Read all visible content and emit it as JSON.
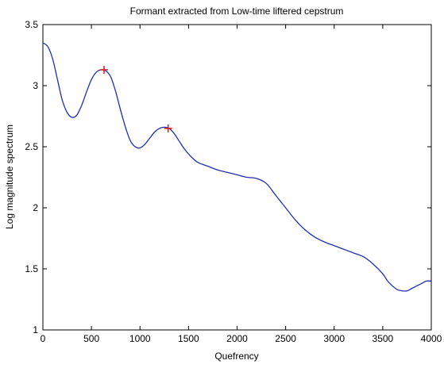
{
  "chart_data": {
    "type": "line",
    "title": "Formant extracted from Low-time liftered cepstrum",
    "xlabel": "Quefrency",
    "ylabel": "Log magnitude spectrum",
    "xlim": [
      0,
      4000
    ],
    "ylim": [
      1,
      3.5
    ],
    "x_ticks": [
      0,
      500,
      1000,
      1500,
      2000,
      2500,
      3000,
      3500,
      4000
    ],
    "y_ticks": [
      1,
      1.5,
      2,
      2.5,
      3,
      3.5
    ],
    "x_tick_labels": [
      "0",
      "500",
      "1000",
      "1500",
      "2000",
      "2500",
      "3000",
      "3500",
      "4000"
    ],
    "y_tick_labels": [
      "1",
      "1.5",
      "2",
      "2.5",
      "3",
      "3.5"
    ],
    "grid": false,
    "series": [
      {
        "color": "#1f2fb0",
        "x": [
          0,
          50,
          100,
          150,
          200,
          250,
          300,
          350,
          400,
          450,
          500,
          550,
          600,
          650,
          700,
          750,
          800,
          850,
          900,
          950,
          1000,
          1050,
          1100,
          1150,
          1200,
          1250,
          1300,
          1350,
          1400,
          1450,
          1500,
          1550,
          1600,
          1700,
          1800,
          1900,
          2000,
          2100,
          2200,
          2300,
          2400,
          2500,
          2600,
          2700,
          2800,
          2900,
          3000,
          3100,
          3200,
          3300,
          3400,
          3500,
          3550,
          3600,
          3650,
          3700,
          3750,
          3800,
          3850,
          3900,
          3950,
          4000
        ],
        "y": [
          3.35,
          3.32,
          3.22,
          3.05,
          2.88,
          2.78,
          2.74,
          2.76,
          2.84,
          2.95,
          3.05,
          3.11,
          3.13,
          3.12,
          3.07,
          2.95,
          2.8,
          2.66,
          2.55,
          2.5,
          2.49,
          2.52,
          2.57,
          2.62,
          2.65,
          2.66,
          2.65,
          2.61,
          2.55,
          2.49,
          2.44,
          2.4,
          2.37,
          2.34,
          2.31,
          2.29,
          2.27,
          2.25,
          2.24,
          2.2,
          2.1,
          2.0,
          1.9,
          1.82,
          1.76,
          1.72,
          1.69,
          1.66,
          1.63,
          1.6,
          1.54,
          1.46,
          1.4,
          1.36,
          1.33,
          1.32,
          1.32,
          1.34,
          1.36,
          1.38,
          1.4,
          1.4
        ]
      }
    ],
    "markers": {
      "symbol": "+",
      "color": "#e01818",
      "points": [
        {
          "x": 630,
          "y": 3.13
        },
        {
          "x": 1290,
          "y": 2.65
        }
      ]
    }
  }
}
